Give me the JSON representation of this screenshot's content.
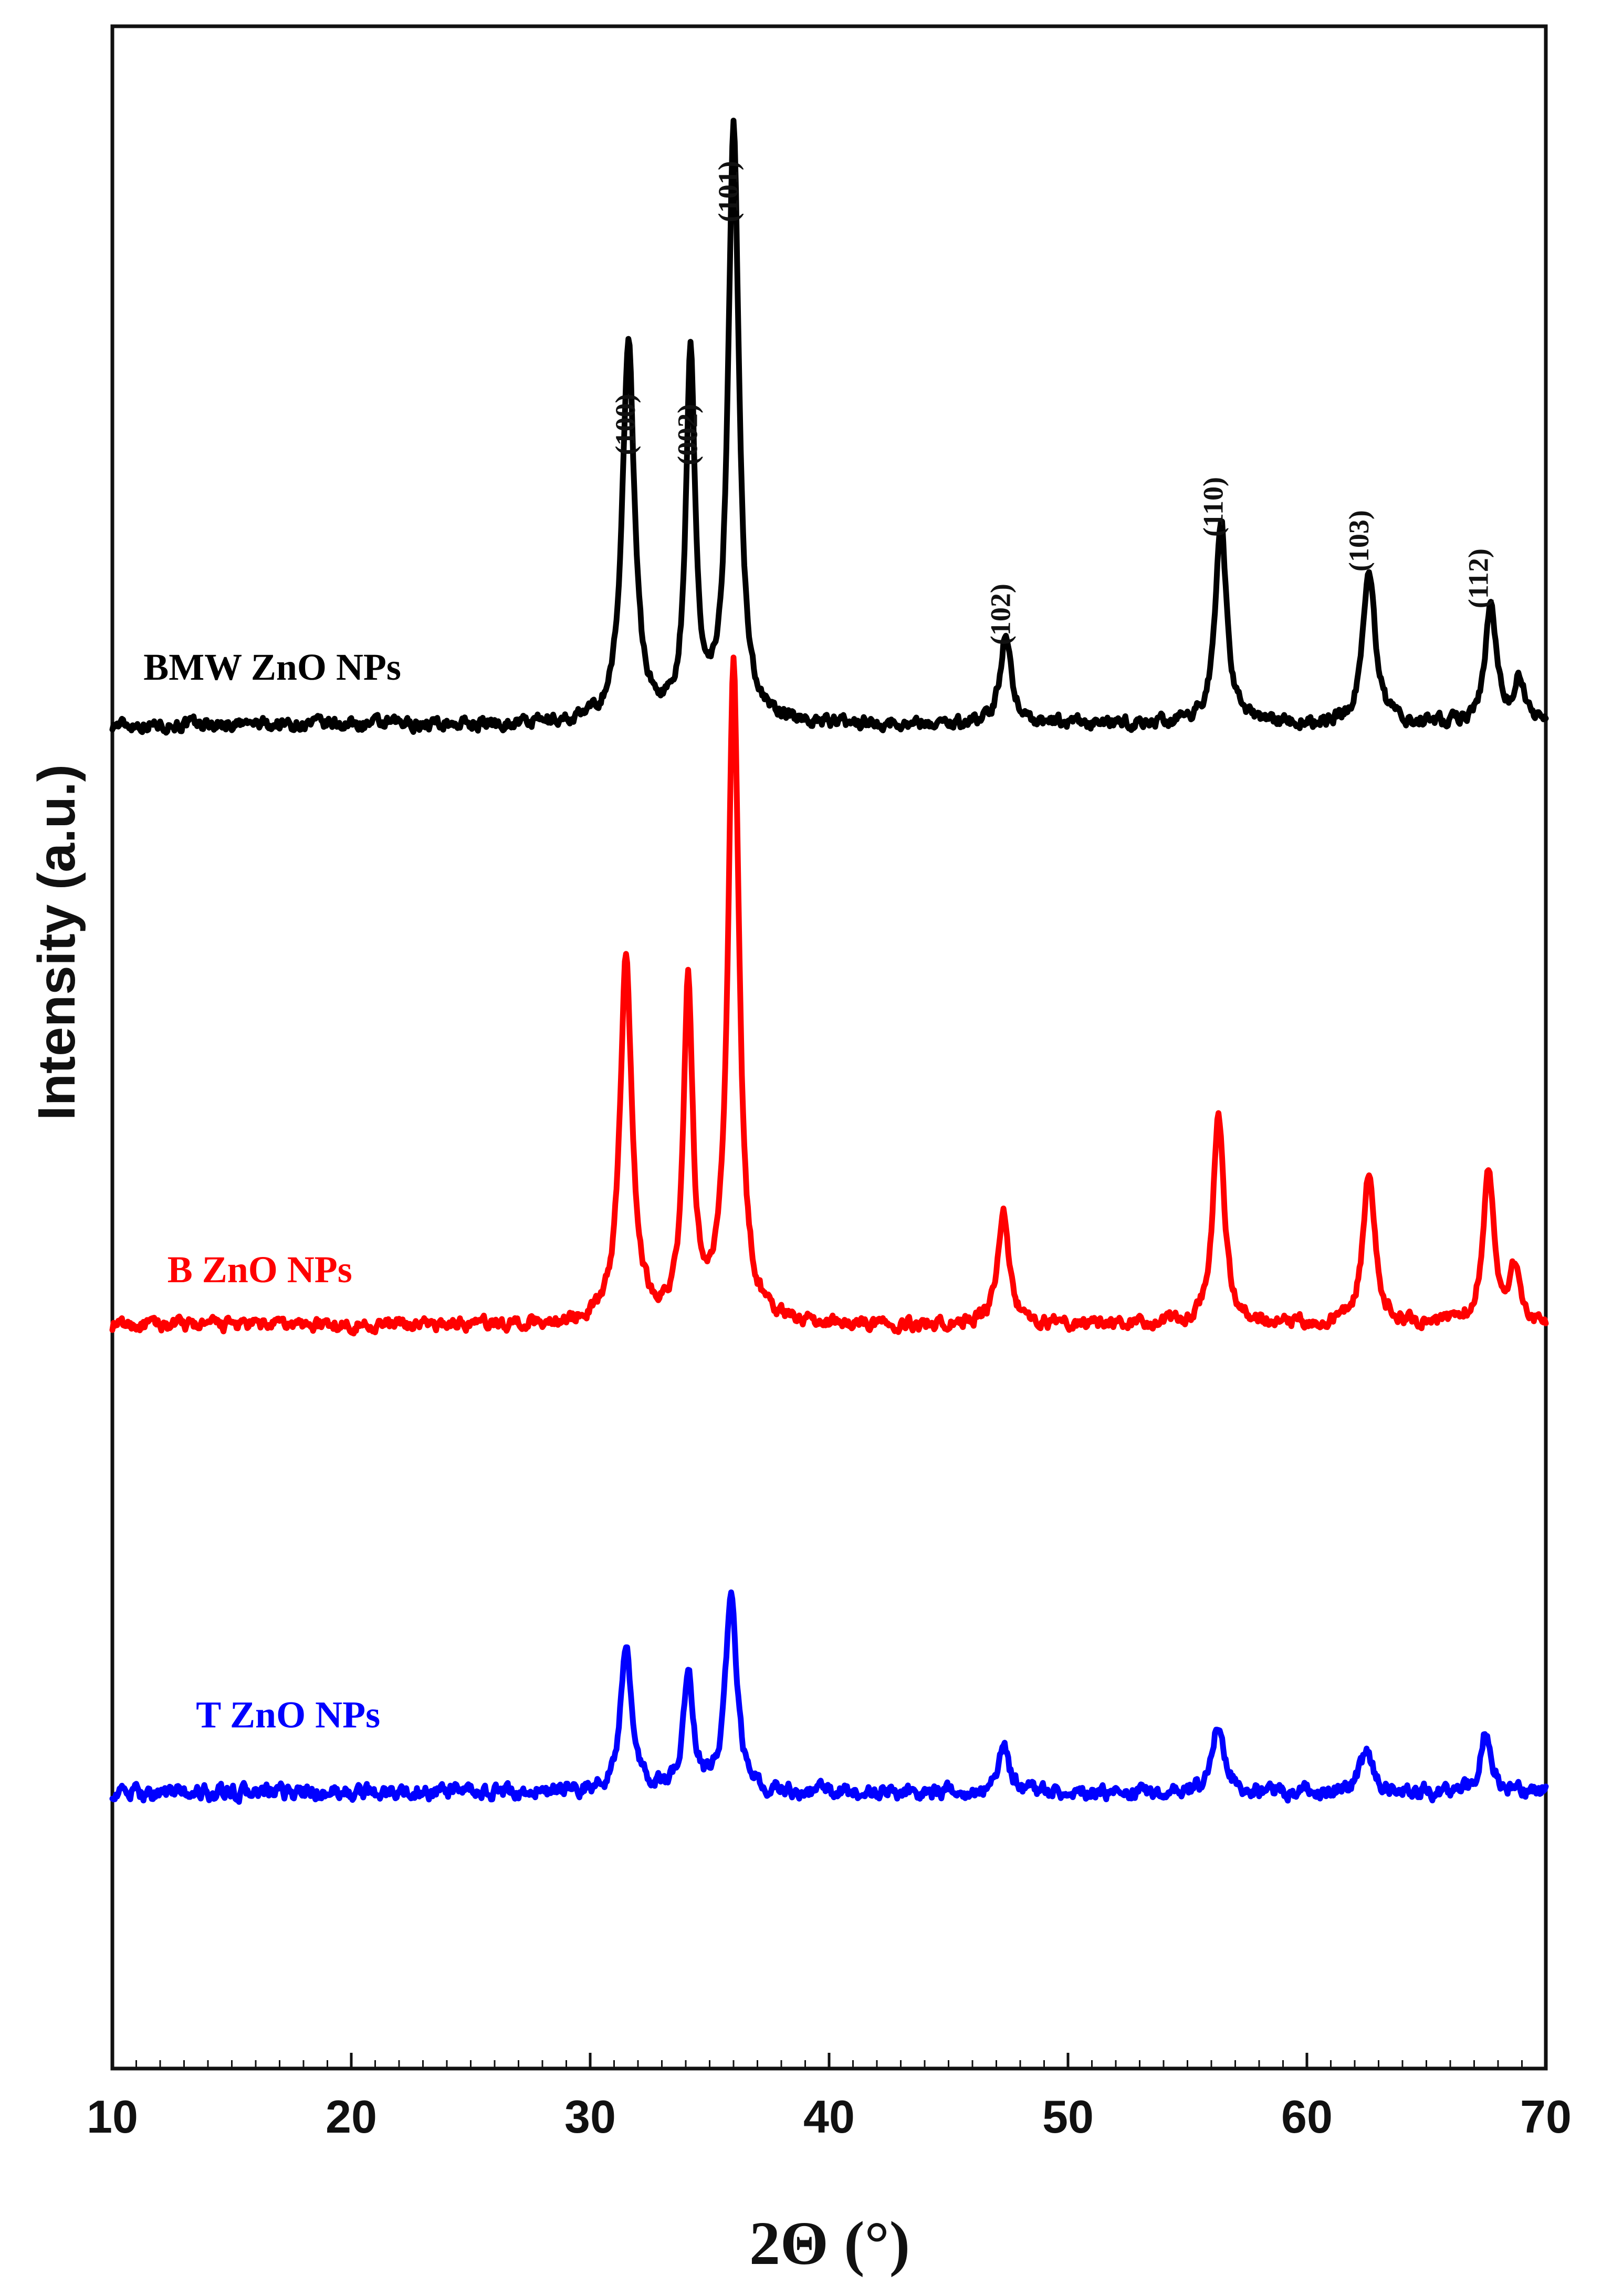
{
  "chart_data": {
    "type": "line",
    "title": "",
    "xlabel": "2Θ (°)",
    "ylabel": "Intensity (a.u.)",
    "xlim": [
      10,
      70
    ],
    "ylim": [
      0,
      100
    ],
    "x_ticks": [
      10,
      20,
      30,
      40,
      50,
      60,
      70
    ],
    "x_tick_labels": [
      "10",
      "20",
      "30",
      "40",
      "50",
      "60",
      "70"
    ],
    "y_ticks_shown": false,
    "grid": false,
    "legend": "none",
    "series": [
      {
        "name": "BMW ZnO NPs",
        "color": "#000000",
        "baseline": 65.8,
        "noise": 0.55,
        "peaks": [
          {
            "x": 31.6,
            "height": 18.8,
            "width": 0.3
          },
          {
            "x": 34.2,
            "height": 17.5,
            "width": 0.23
          },
          {
            "x": 36.0,
            "height": 29.2,
            "width": 0.27
          },
          {
            "x": 47.4,
            "height": 4.4,
            "width": 0.28
          },
          {
            "x": 56.4,
            "height": 10.1,
            "width": 0.28
          },
          {
            "x": 62.6,
            "height": 7.7,
            "width": 0.3
          },
          {
            "x": 67.7,
            "height": 6.0,
            "width": 0.28
          },
          {
            "x": 68.9,
            "height": 2.2,
            "width": 0.25
          }
        ]
      },
      {
        "name": "B ZnO NPs",
        "color": "#ff0000",
        "baseline": 36.4,
        "noise": 0.55,
        "peaks": [
          {
            "x": 31.5,
            "height": 18.0,
            "width": 0.3
          },
          {
            "x": 34.1,
            "height": 16.3,
            "width": 0.23
          },
          {
            "x": 36.0,
            "height": 32.4,
            "width": 0.27
          },
          {
            "x": 47.3,
            "height": 5.6,
            "width": 0.28
          },
          {
            "x": 56.3,
            "height": 10.2,
            "width": 0.28
          },
          {
            "x": 62.6,
            "height": 7.3,
            "width": 0.3
          },
          {
            "x": 67.6,
            "height": 7.6,
            "width": 0.28
          },
          {
            "x": 68.7,
            "height": 2.6,
            "width": 0.25
          }
        ]
      },
      {
        "name": "T ZnO NPs",
        "color": "#0000ff",
        "baseline": 13.5,
        "noise": 0.65,
        "peaks": [
          {
            "x": 31.5,
            "height": 7.0,
            "width": 0.28
          },
          {
            "x": 34.1,
            "height": 5.7,
            "width": 0.25
          },
          {
            "x": 35.9,
            "height": 10.0,
            "width": 0.27
          },
          {
            "x": 47.3,
            "height": 2.2,
            "width": 0.28
          },
          {
            "x": 56.3,
            "height": 3.4,
            "width": 0.3
          },
          {
            "x": 62.5,
            "height": 2.2,
            "width": 0.3
          },
          {
            "x": 67.5,
            "height": 3.0,
            "width": 0.28
          }
        ]
      }
    ],
    "annotations": [
      {
        "text": "(100)",
        "x": 31.6,
        "y": 79.0
      },
      {
        "text": "(002)",
        "x": 34.2,
        "y": 78.5
      },
      {
        "text": "(101)",
        "x": 35.9,
        "y": 90.4
      },
      {
        "text": "(102)",
        "x": 47.3,
        "y": 69.7
      },
      {
        "text": "(110)",
        "x": 56.2,
        "y": 75.0
      },
      {
        "text": "(103)",
        "x": 62.3,
        "y": 73.3
      },
      {
        "text": "(112)",
        "x": 67.3,
        "y": 71.5
      }
    ],
    "series_labels": [
      {
        "text": "BMW ZnO NPs",
        "x": 11.3,
        "y": 68.0,
        "color": "#000000"
      },
      {
        "text": "B ZnO NPs",
        "x": 12.3,
        "y": 38.5,
        "color": "#ff0000"
      },
      {
        "text": "T ZnO NPs",
        "x": 13.5,
        "y": 16.7,
        "color": "#0000ff"
      }
    ]
  }
}
